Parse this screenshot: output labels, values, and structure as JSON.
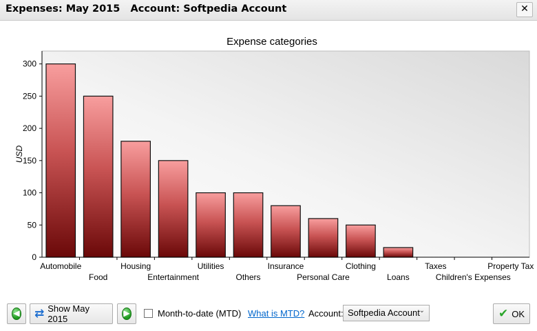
{
  "window": {
    "title": "Expenses: May 2015   Account: Softpedia Account",
    "close_glyph": "✕"
  },
  "controls": {
    "prev_icon": "left-arrow-icon",
    "refresh_icon": "refresh-icon",
    "show_label": "Show May 2015",
    "next_icon": "right-arrow-icon",
    "mtd_checked": false,
    "mtd_label": "Month-to-date (MTD)",
    "what_is_mtd": "What is MTD?",
    "account_label": "Account:",
    "account_value": "Softpedia Account",
    "ok_label": "OK"
  },
  "colors": {
    "bar_top": "#f89e9e",
    "bar_bottom": "#6a0808",
    "link": "#0066cc",
    "accent_green": "#1e9a1e"
  },
  "chart_data": {
    "type": "bar",
    "title": "Expense categories",
    "xlabel": "",
    "ylabel": "USD",
    "ylim": [
      0,
      320
    ],
    "yticks": [
      0,
      50,
      100,
      150,
      200,
      250,
      300
    ],
    "categories": [
      "Automobile",
      "Food",
      "Housing",
      "Entertainment",
      "Utilities",
      "Others",
      "Insurance",
      "Personal Care",
      "Clothing",
      "Loans",
      "Taxes",
      "Children's Expenses",
      "Property Tax"
    ],
    "values": [
      300,
      250,
      180,
      150,
      100,
      100,
      80,
      60,
      50,
      15,
      0,
      0,
      0
    ],
    "grid": false,
    "legend": "none"
  }
}
